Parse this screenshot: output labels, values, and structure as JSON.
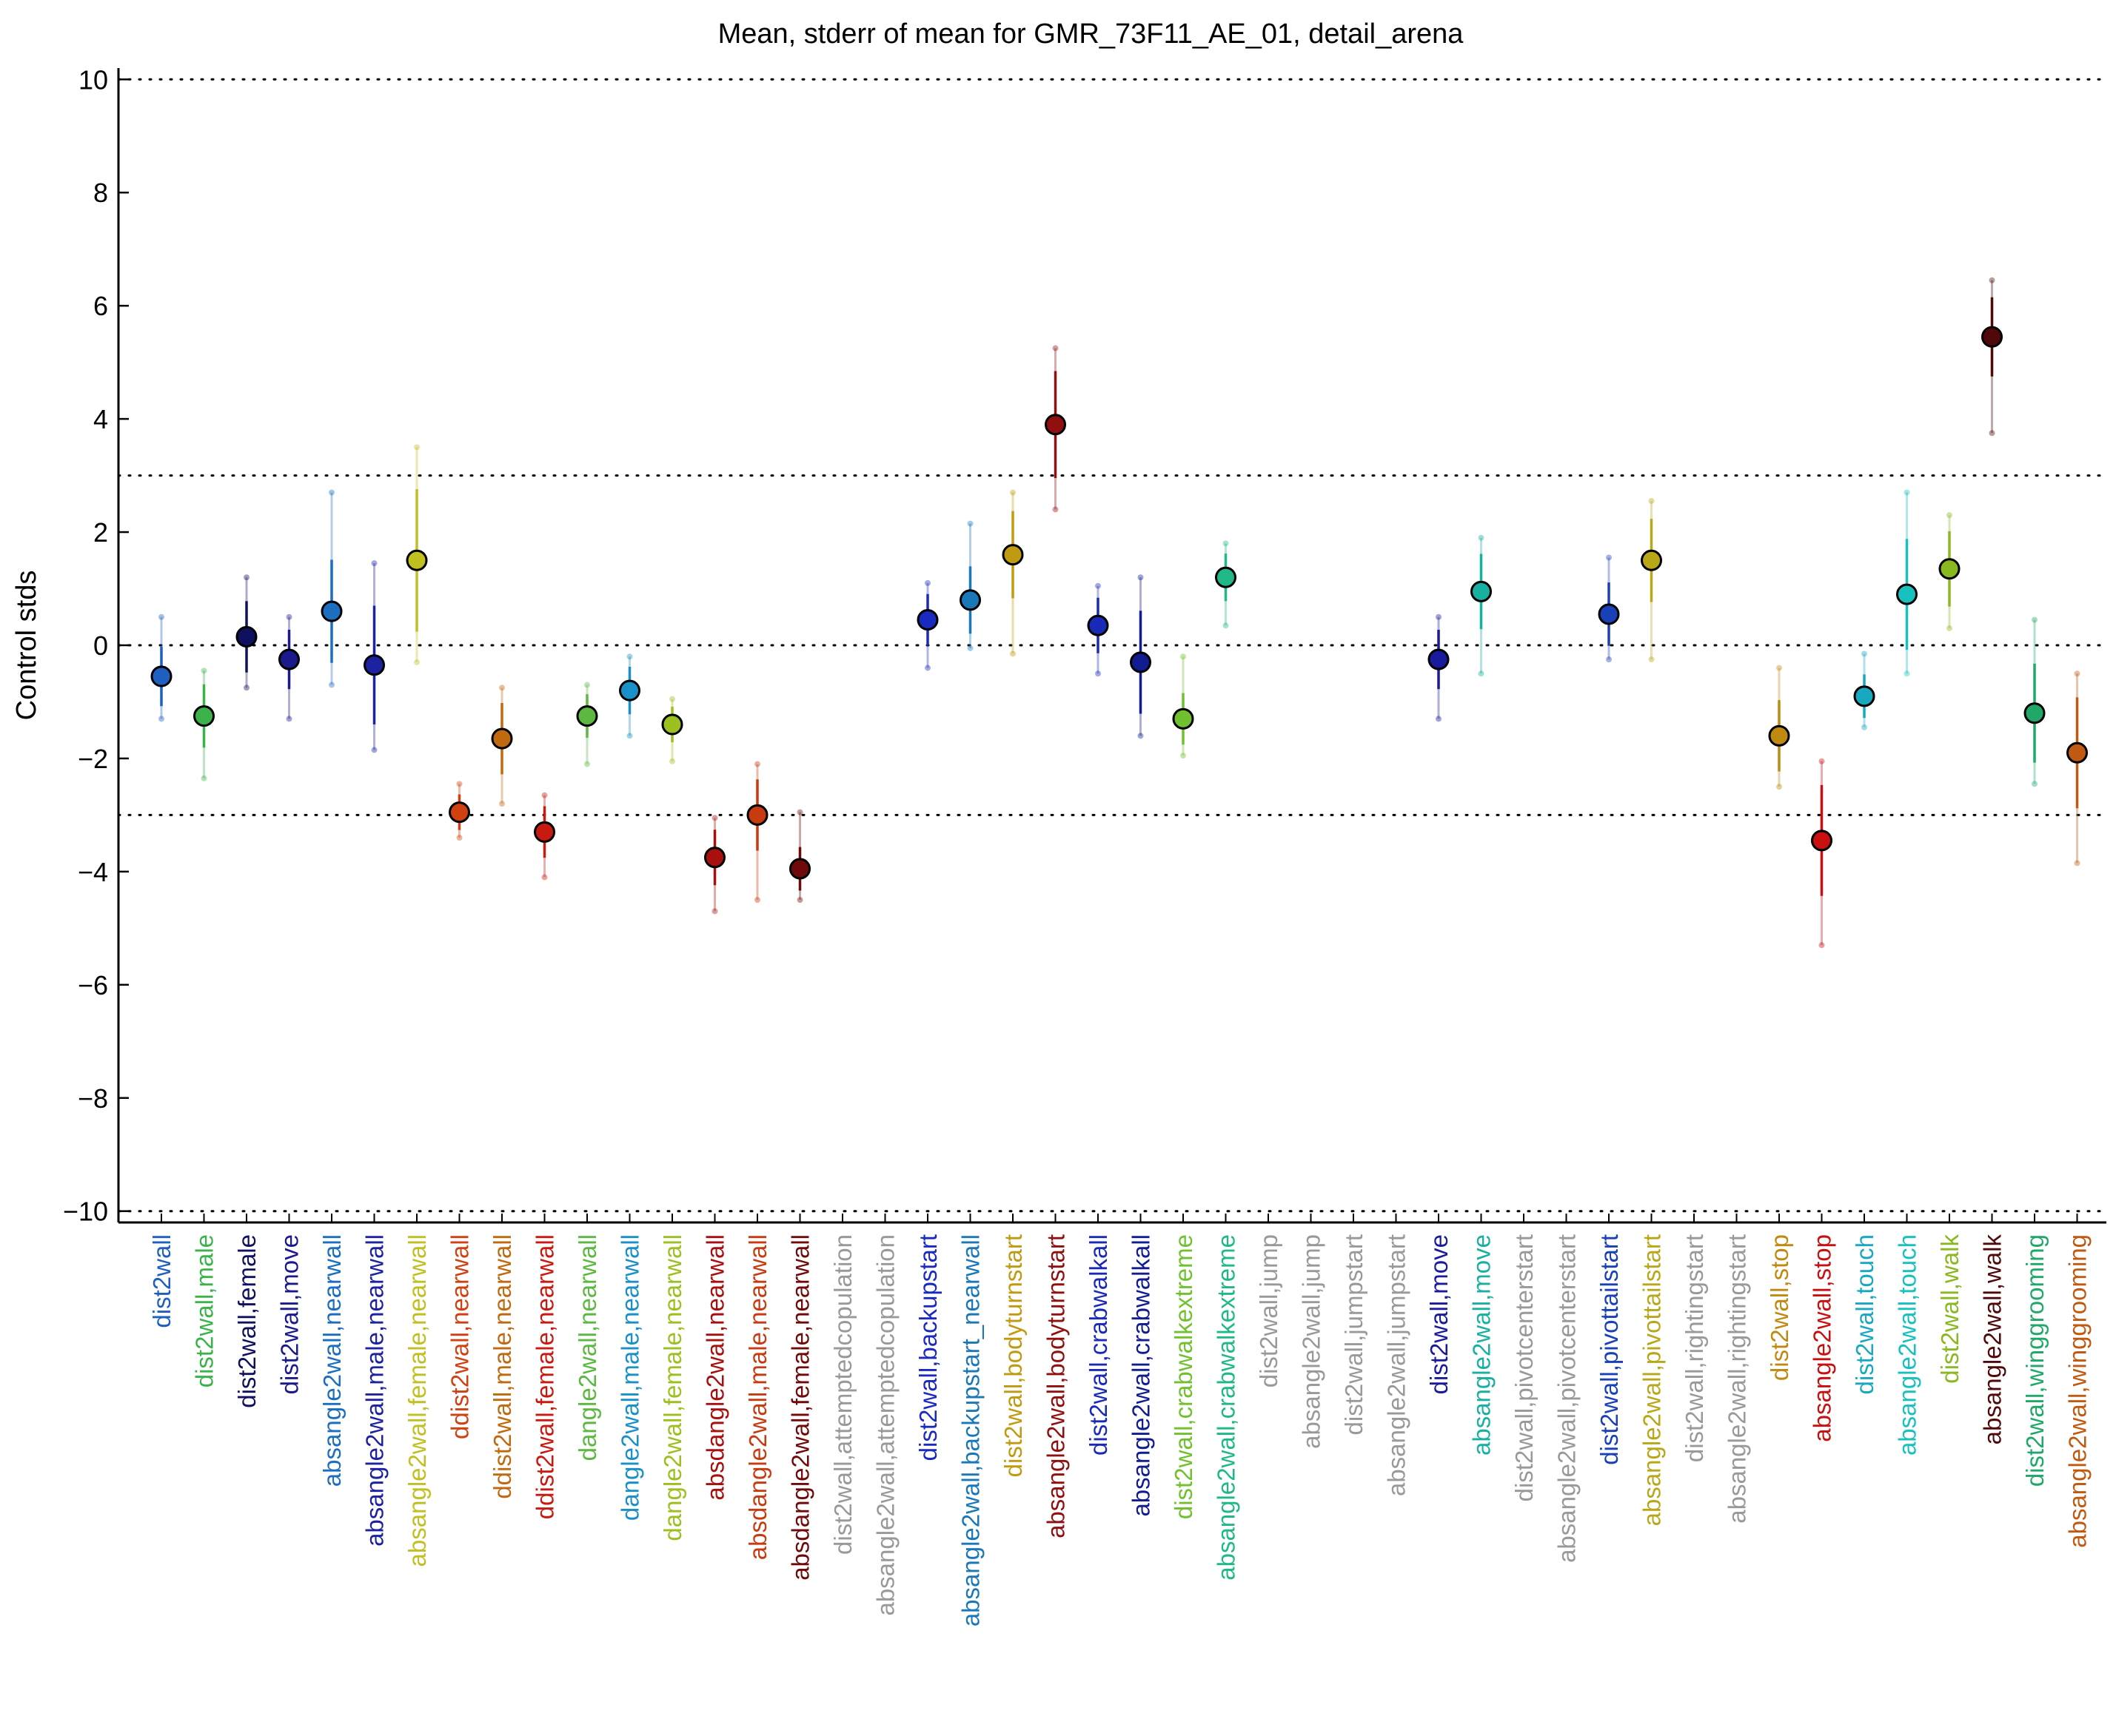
{
  "chart_data": {
    "type": "scatter",
    "title": "Mean, stderr of mean for GMR_73F11_AE_01, detail_arena",
    "xlabel": "",
    "ylabel": "Control stds",
    "ylim": [
      -10.2,
      10.2
    ],
    "yticks": [
      10,
      8,
      6,
      4,
      2,
      0,
      -2,
      -4,
      -6,
      -8,
      -10
    ],
    "ytick_labels": [
      "10",
      "8",
      "6",
      "4",
      "2",
      "0",
      "−2",
      "−4",
      "−6",
      "−8",
      "−10"
    ],
    "reference_lines": [
      10,
      3,
      0,
      -3,
      -10
    ],
    "grid": false,
    "categories": [
      {
        "label": "dist2wall",
        "color": "#1f5fbf",
        "mean": -0.55,
        "lo": -1.3,
        "hi": 0.5
      },
      {
        "label": "dist2wall,male",
        "color": "#3cb34a",
        "mean": -1.25,
        "lo": -2.35,
        "hi": -0.45
      },
      {
        "label": "dist2wall,female",
        "color": "#101060",
        "mean": 0.15,
        "lo": -0.75,
        "hi": 1.2
      },
      {
        "label": "dist2wall,move",
        "color": "#1a1a8c",
        "mean": -0.25,
        "lo": -1.3,
        "hi": 0.5
      },
      {
        "label": "absangle2wall,nearwall",
        "color": "#1c6fc0",
        "mean": 0.6,
        "lo": -0.7,
        "hi": 2.7
      },
      {
        "label": "absangle2wall,male,nearwall",
        "color": "#1c22a0",
        "mean": -0.35,
        "lo": -1.85,
        "hi": 1.45
      },
      {
        "label": "absangle2wall,female,nearwall",
        "color": "#c0c020",
        "mean": 1.5,
        "lo": -0.3,
        "hi": 3.5
      },
      {
        "label": "ddist2wall,nearwall",
        "color": "#d04010",
        "mean": -2.95,
        "lo": -3.4,
        "hi": -2.45
      },
      {
        "label": "ddist2wall,male,nearwall",
        "color": "#c06a10",
        "mean": -1.65,
        "lo": -2.8,
        "hi": -0.75
      },
      {
        "label": "ddist2wall,female,nearwall",
        "color": "#c81a10",
        "mean": -3.3,
        "lo": -4.1,
        "hi": -2.65
      },
      {
        "label": "dangle2wall,nearwall",
        "color": "#5cb840",
        "mean": -1.25,
        "lo": -2.1,
        "hi": -0.7
      },
      {
        "label": "dangle2wall,male,nearwall",
        "color": "#1a90c8",
        "mean": -0.8,
        "lo": -1.6,
        "hi": -0.2
      },
      {
        "label": "dangle2wall,female,nearwall",
        "color": "#9cc020",
        "mean": -1.4,
        "lo": -2.05,
        "hi": -0.95
      },
      {
        "label": "absdangle2wall,nearwall",
        "color": "#a81010",
        "mean": -3.75,
        "lo": -4.7,
        "hi": -3.05
      },
      {
        "label": "absdangle2wall,male,nearwall",
        "color": "#c83a10",
        "mean": -3.0,
        "lo": -4.5,
        "hi": -2.1
      },
      {
        "label": "absdangle2wall,female,nearwall",
        "color": "#700a0a",
        "mean": -3.95,
        "lo": -4.5,
        "hi": -2.95
      },
      {
        "label": "dist2wall,attemptedcopulation",
        "color": "#999999",
        "mean": null,
        "lo": null,
        "hi": null
      },
      {
        "label": "absangle2wall,attemptedcopulation",
        "color": "#999999",
        "mean": null,
        "lo": null,
        "hi": null
      },
      {
        "label": "dist2wall,backupstart",
        "color": "#1a2abf",
        "mean": 0.45,
        "lo": -0.4,
        "hi": 1.1
      },
      {
        "label": "absangle2wall,backupstart_nearwall",
        "color": "#1a78b8",
        "mean": 0.8,
        "lo": -0.05,
        "hi": 2.15
      },
      {
        "label": "dist2wall,bodyturnstart",
        "color": "#c09a10",
        "mean": 1.6,
        "lo": -0.15,
        "hi": 2.7
      },
      {
        "label": "absangle2wall,bodyturnstart",
        "color": "#901010",
        "mean": 3.9,
        "lo": 2.4,
        "hi": 5.25
      },
      {
        "label": "dist2wall,crabwalkall",
        "color": "#1a2ab8",
        "mean": 0.35,
        "lo": -0.5,
        "hi": 1.05
      },
      {
        "label": "absangle2wall,crabwalkall",
        "color": "#101c90",
        "mean": -0.3,
        "lo": -1.6,
        "hi": 1.2
      },
      {
        "label": "dist2wall,crabwalkextreme",
        "color": "#70c030",
        "mean": -1.3,
        "lo": -1.95,
        "hi": -0.2
      },
      {
        "label": "absangle2wall,crabwalkextreme",
        "color": "#20b888",
        "mean": 1.2,
        "lo": 0.35,
        "hi": 1.8
      },
      {
        "label": "dist2wall,jump",
        "color": "#999999",
        "mean": null,
        "lo": null,
        "hi": null
      },
      {
        "label": "absangle2wall,jump",
        "color": "#999999",
        "mean": null,
        "lo": null,
        "hi": null
      },
      {
        "label": "dist2wall,jumpstart",
        "color": "#999999",
        "mean": null,
        "lo": null,
        "hi": null
      },
      {
        "label": "absangle2wall,jumpstart",
        "color": "#999999",
        "mean": null,
        "lo": null,
        "hi": null
      },
      {
        "label": "dist2wall,move",
        "color": "#1a1a9c",
        "mean": -0.25,
        "lo": -1.3,
        "hi": 0.5
      },
      {
        "label": "absangle2wall,move",
        "color": "#18b0a0",
        "mean": 0.95,
        "lo": -0.5,
        "hi": 1.9
      },
      {
        "label": "dist2wall,pivotcenterstart",
        "color": "#999999",
        "mean": null,
        "lo": null,
        "hi": null
      },
      {
        "label": "absangle2wall,pivotcenterstart",
        "color": "#999999",
        "mean": null,
        "lo": null,
        "hi": null
      },
      {
        "label": "dist2wall,pivottailstart",
        "color": "#1a40b8",
        "mean": 0.55,
        "lo": -0.25,
        "hi": 1.55
      },
      {
        "label": "absangle2wall,pivottailstart",
        "color": "#b8a818",
        "mean": 1.5,
        "lo": -0.25,
        "hi": 2.55
      },
      {
        "label": "dist2wall,rightingstart",
        "color": "#999999",
        "mean": null,
        "lo": null,
        "hi": null
      },
      {
        "label": "absangle2wall,rightingstart",
        "color": "#999999",
        "mean": null,
        "lo": null,
        "hi": null
      },
      {
        "label": "dist2wall,stop",
        "color": "#c08a10",
        "mean": -1.6,
        "lo": -2.5,
        "hi": -0.4
      },
      {
        "label": "absangle2wall,stop",
        "color": "#c81010",
        "mean": -3.45,
        "lo": -5.3,
        "hi": -2.05
      },
      {
        "label": "dist2wall,touch",
        "color": "#18a8c0",
        "mean": -0.9,
        "lo": -1.45,
        "hi": -0.15
      },
      {
        "label": "absangle2wall,touch",
        "color": "#18c0c0",
        "mean": 0.9,
        "lo": -0.5,
        "hi": 2.7
      },
      {
        "label": "dist2wall,walk",
        "color": "#8ab820",
        "mean": 1.35,
        "lo": 0.3,
        "hi": 2.3
      },
      {
        "label": "absangle2wall,walk",
        "color": "#500808",
        "mean": 5.45,
        "lo": 3.75,
        "hi": 6.45
      },
      {
        "label": "dist2wall,winggrooming",
        "color": "#20a868",
        "mean": -1.2,
        "lo": -2.45,
        "hi": 0.45
      },
      {
        "label": "absangle2wall,winggrooming",
        "color": "#c05a10",
        "mean": -1.9,
        "lo": -3.85,
        "hi": -0.5
      }
    ]
  }
}
